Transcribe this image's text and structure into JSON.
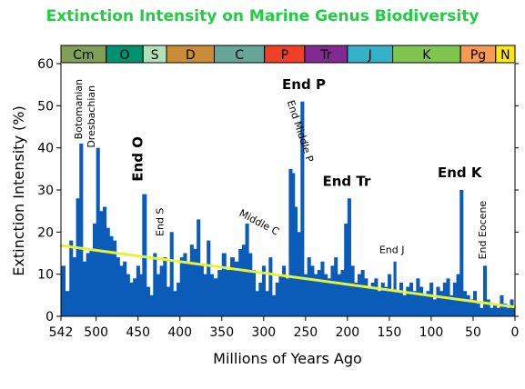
{
  "chart_data": {
    "type": "bar",
    "title": "Extinction Intensity on Marine Genus Biodiversity",
    "xlabel": "Millions of Years Ago",
    "ylabel": "Extinction Intensity (%)",
    "xlim": [
      542,
      0
    ],
    "ylim": [
      0,
      60
    ],
    "xticks": [
      542,
      500,
      450,
      400,
      350,
      300,
      250,
      200,
      150,
      100,
      50,
      0
    ],
    "yticks": [
      0,
      10,
      20,
      30,
      40,
      50,
      60
    ],
    "bar_color": "#0b5cb8",
    "trend_line": {
      "color": "#e6f23a",
      "x": [
        542,
        0
      ],
      "y": [
        16.8,
        2.2
      ]
    },
    "periods": [
      {
        "label": "Cm",
        "start": 542,
        "end": 488,
        "color": "#7fa056"
      },
      {
        "label": "O",
        "start": 488,
        "end": 444,
        "color": "#009270"
      },
      {
        "label": "S",
        "start": 444,
        "end": 416,
        "color": "#b3e1b6"
      },
      {
        "label": "D",
        "start": 416,
        "end": 359,
        "color": "#cb8c37"
      },
      {
        "label": "C",
        "start": 359,
        "end": 299,
        "color": "#67a599"
      },
      {
        "label": "P",
        "start": 299,
        "end": 251,
        "color": "#f04028"
      },
      {
        "label": "Tr",
        "start": 251,
        "end": 200,
        "color": "#812b92"
      },
      {
        "label": "J",
        "start": 200,
        "end": 146,
        "color": "#34b2c9"
      },
      {
        "label": "K",
        "start": 146,
        "end": 65,
        "color": "#7fc64e"
      },
      {
        "label": "Pg",
        "start": 65,
        "end": 23,
        "color": "#fd9a52"
      },
      {
        "label": "N",
        "start": 23,
        "end": 0,
        "color": "#ffe619"
      }
    ],
    "annotations": [
      {
        "text": "Botomanian",
        "x": 517,
        "y": 42,
        "style": "small",
        "rotate": -90
      },
      {
        "text": "Dresbachian",
        "x": 502,
        "y": 40,
        "style": "small",
        "rotate": -90
      },
      {
        "text": "End O",
        "x": 445,
        "y": 32,
        "style": "big",
        "rotate": -90
      },
      {
        "text": "End S",
        "x": 420,
        "y": 19,
        "style": "small",
        "rotate": -90
      },
      {
        "text": "Middle C",
        "x": 330,
        "y": 24,
        "style": "small",
        "rotate": 28
      },
      {
        "text": "End Middle P",
        "x": 272,
        "y": 51,
        "style": "small",
        "rotate": 72
      },
      {
        "text": "End P",
        "x": 252,
        "y": 54,
        "style": "big",
        "rotate": 0
      },
      {
        "text": "End Tr",
        "x": 201,
        "y": 31,
        "style": "big",
        "rotate": 0
      },
      {
        "text": "End J",
        "x": 147,
        "y": 15,
        "style": "small",
        "rotate": 0
      },
      {
        "text": "End K",
        "x": 66,
        "y": 33,
        "style": "big",
        "rotate": 0
      },
      {
        "text": "End Eocene",
        "x": 35,
        "y": 13.5,
        "style": "small",
        "rotate": -90
      }
    ],
    "series": [
      {
        "x": [
          542,
          537,
          532,
          528,
          524,
          520,
          516,
          512,
          508,
          504,
          500,
          496,
          492,
          488,
          484,
          480,
          476,
          472,
          468,
          464,
          460,
          456,
          452,
          448,
          445,
          440,
          436,
          432,
          428,
          424,
          420,
          416,
          412,
          408,
          404,
          400,
          396,
          392,
          388,
          384,
          380,
          376,
          372,
          368,
          364,
          360,
          355,
          350,
          345,
          340,
          335,
          330,
          326,
          322,
          318,
          314,
          310,
          306,
          302,
          298,
          294,
          290,
          286,
          282,
          278,
          274,
          270,
          266,
          263,
          260,
          256,
          252,
          248,
          244,
          240,
          236,
          232,
          228,
          224,
          220,
          216,
          212,
          208,
          204,
          200,
          196,
          192,
          188,
          184,
          180,
          176,
          172,
          168,
          164,
          160,
          156,
          152,
          148,
          145,
          142,
          138,
          134,
          130,
          126,
          122,
          118,
          114,
          110,
          106,
          102,
          98,
          94,
          90,
          86,
          82,
          78,
          74,
          70,
          66,
          62,
          58,
          54,
          50,
          46,
          42,
          38,
          34,
          30,
          26,
          22,
          18,
          14,
          10,
          6,
          2
        ],
        "values": [
          12,
          6,
          18,
          14,
          28,
          41,
          13,
          15,
          16,
          22,
          40,
          25,
          26,
          21,
          19,
          18,
          14,
          12,
          13,
          10,
          8,
          9,
          12,
          10,
          29,
          7,
          5,
          15,
          10,
          12,
          14,
          7,
          20,
          6,
          8,
          14,
          15,
          13,
          17,
          16,
          23,
          12,
          10,
          18,
          10,
          9,
          11,
          15,
          11,
          14,
          13,
          16,
          17,
          22,
          15,
          11,
          6,
          8,
          12,
          6,
          14,
          5,
          8,
          10,
          12,
          9,
          35,
          34,
          26,
          20,
          51,
          10,
          14,
          12,
          10,
          11,
          13,
          10,
          9,
          12,
          14,
          10,
          11,
          22,
          28,
          12,
          8,
          10,
          11,
          9,
          7,
          8,
          9,
          6,
          8,
          7,
          10,
          6,
          13,
          6,
          8,
          5,
          7,
          8,
          6,
          9,
          7,
          5,
          6,
          8,
          4,
          7,
          6,
          8,
          9,
          5,
          8,
          10,
          30,
          6,
          5,
          4,
          6,
          3,
          2,
          12,
          4,
          2,
          3,
          2,
          5,
          3,
          2,
          4,
          2
        ]
      }
    ]
  }
}
